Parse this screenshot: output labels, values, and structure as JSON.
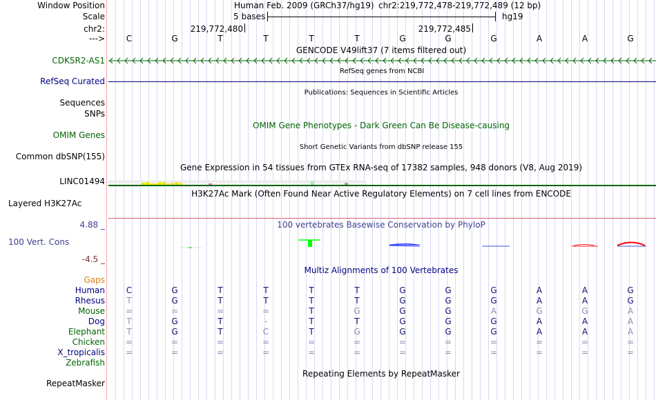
{
  "header": {
    "window_position_label": "Window Position",
    "scale_label": "Scale",
    "chrom_label": "chr2:",
    "strand_label": "--->",
    "assembly": "Human Feb. 2009 (GRCh37/hg19)",
    "position": "chr2:219,772,478-219,772,489 (12 bp)",
    "scale_text": "5 bases",
    "db": "hg19",
    "coord_1": "219,772,480",
    "coord_2": "219,772,485"
  },
  "bases": [
    "C",
    "G",
    "T",
    "T",
    "T",
    "T",
    "G",
    "G",
    "G",
    "A",
    "A",
    "G"
  ],
  "tracks": {
    "gencode_title": "GENCODE V49lift37 (7 items filtered out)",
    "gencode_label": "CDK5R2-AS1",
    "refseq_title": "RefSeq genes from NCBI",
    "refseq_label": "RefSeq Curated",
    "publications_title": "Publications: Sequences in Scientific Articles",
    "sequences_label": "Sequences",
    "snps_label": "SNPs",
    "omim_title": "OMIM Gene Phenotypes - Dark Green Can Be Disease-causing",
    "omim_label": "OMIM Genes",
    "dbsnp_title": "Short Genetic Variants from dbSNP release 155",
    "dbsnp_label": "Common dbSNP(155)",
    "gtex_title": "Gene Expression in 54 tissues from GTEx RNA-seq of 17382 samples, 948 donors (V8, Aug 2019)",
    "gtex_label": "LINC01494",
    "h3k27ac_title": "H3K27Ac Mark (Often Found Near Active Regulatory Elements) on 7 cell lines from ENCODE",
    "h3k27ac_label": "Layered H3K27Ac",
    "cons_title": "100 vertebrates Basewise Conservation by PhyloP",
    "cons_label": "100 Vert. Cons",
    "cons_max": "4.88 _",
    "cons_min": "-4.5 _",
    "multiz_title": "Multiz Alignments of 100 Vertebrates",
    "gaps_label": "Gaps",
    "repeat_title": "Repeating Elements by RepeatMasker",
    "repeat_label": "RepeatMasker"
  },
  "alignment": [
    {
      "species": "Human",
      "color": "navy",
      "seq": "CGTTTTGGGAAG"
    },
    {
      "species": "Rhesus",
      "color": "navy",
      "seq": "TGTTTTGGGAAG"
    },
    {
      "species": "Mouse",
      "color": "green",
      "seq": "====TGGGAGGA"
    },
    {
      "species": "Dog",
      "color": "navy",
      "seq": "TGT-TTGGGAAA"
    },
    {
      "species": "Elephant",
      "color": "green",
      "seq": "TGTCTGGGGAAA"
    },
    {
      "species": "Chicken",
      "color": "green",
      "seq": "============"
    },
    {
      "species": "X_tropicalis",
      "color": "navy",
      "seq": "============"
    },
    {
      "species": "Zebrafish",
      "color": "green",
      "seq": ""
    }
  ],
  "colors": {
    "gencode": "#006400",
    "refseq": "#000080",
    "h3k27ac_line": "#e06070",
    "cons_label": "#404090"
  }
}
